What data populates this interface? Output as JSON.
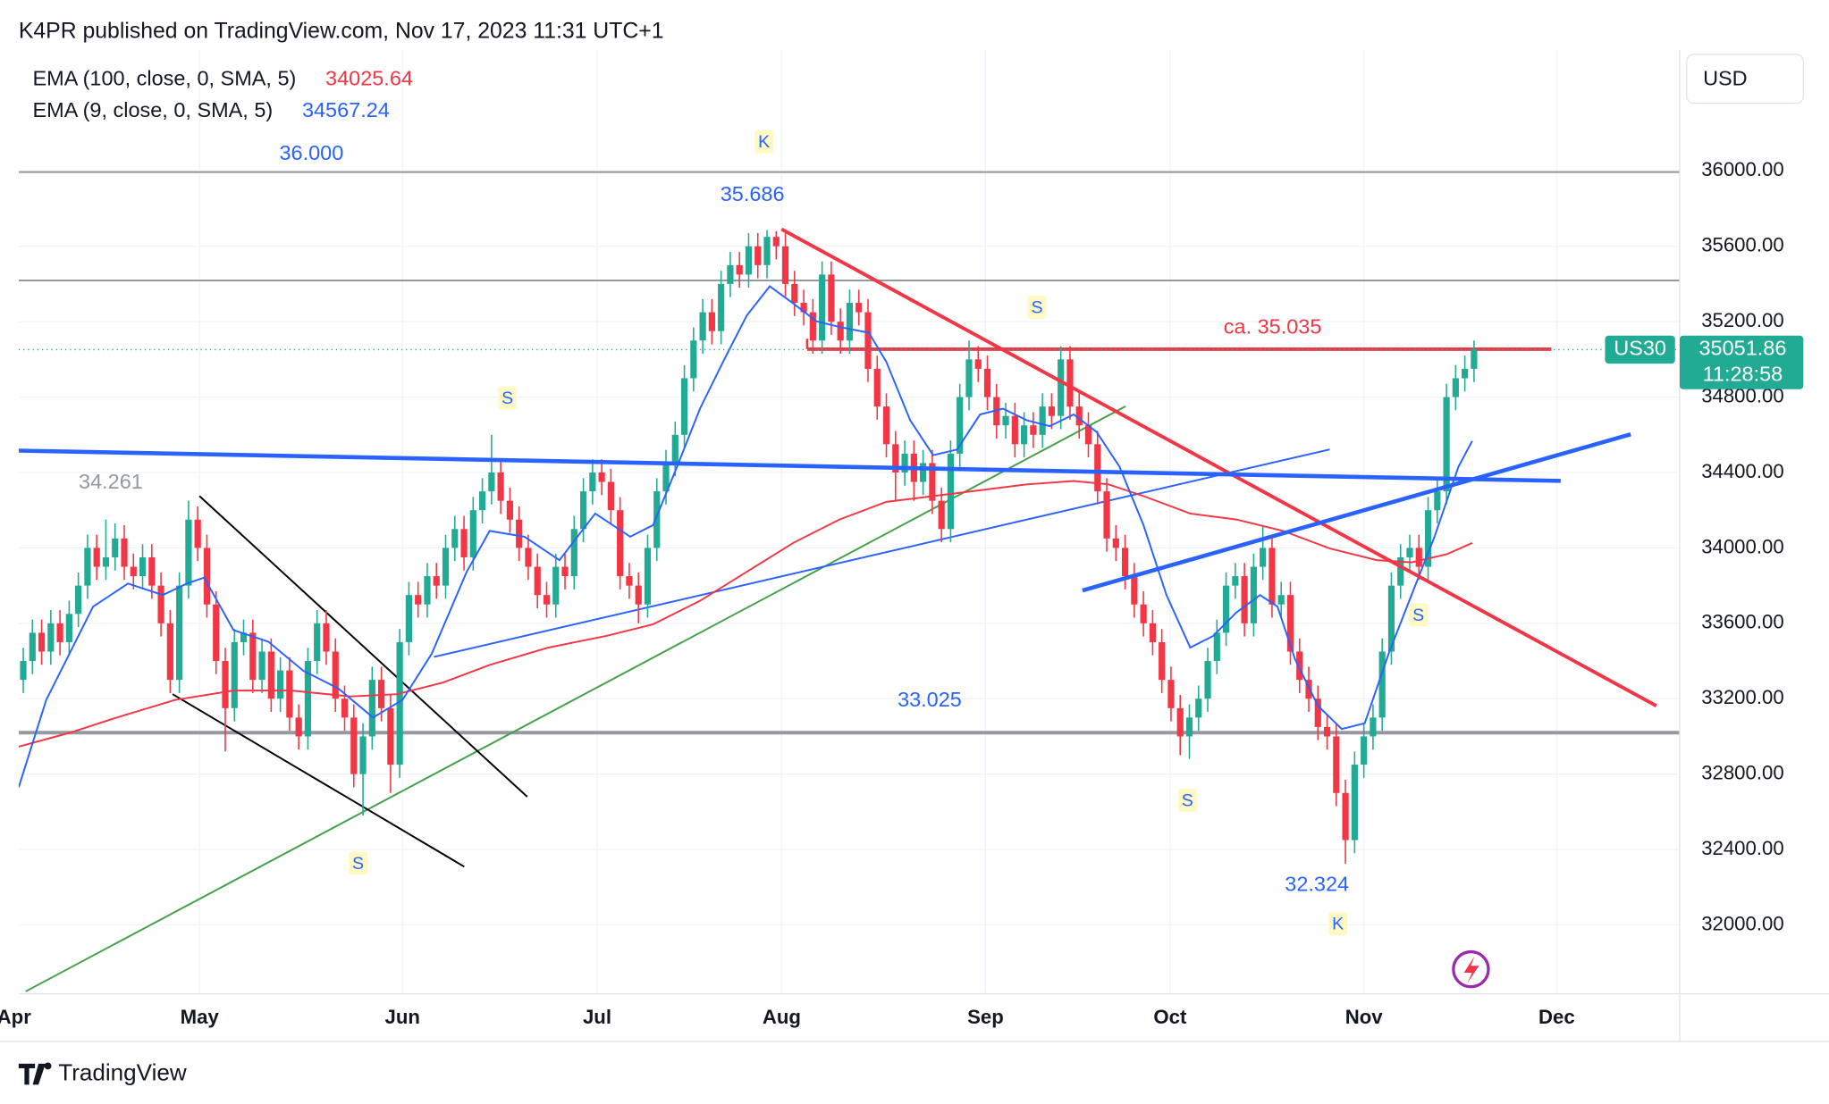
{
  "header": "K4PR published on TradingView.com, Nov 17, 2023 11:31 UTC+1",
  "footer": "TradingView",
  "chart_data": {
    "type": "candlestick",
    "symbol": "US30",
    "currency": "USD",
    "countdown": "11:28:58",
    "up_color": "#22ab94",
    "down_color": "#f23645",
    "grid": true,
    "xlim": [
      -0.5,
      180.4
    ],
    "xticks": [
      {
        "value": -1,
        "label": "Apr"
      },
      {
        "value": 19.2,
        "label": "May"
      },
      {
        "value": 41.3,
        "label": "Jun"
      },
      {
        "value": 62.5,
        "label": "Jul"
      },
      {
        "value": 82.6,
        "label": "Aug"
      },
      {
        "value": 104.8,
        "label": "Sep"
      },
      {
        "value": 124.9,
        "label": "Oct"
      },
      {
        "value": 146,
        "label": "Nov"
      },
      {
        "value": 167,
        "label": "Dec"
      }
    ],
    "ylim": [
      31635,
      36643
    ],
    "yticks": [
      {
        "value": 32000,
        "label": "32000.00"
      },
      {
        "value": 32400,
        "label": "32400.00"
      },
      {
        "value": 32800,
        "label": "32800.00"
      },
      {
        "value": 33200,
        "label": "33200.00"
      },
      {
        "value": 33600,
        "label": "33600.00"
      },
      {
        "value": 34000,
        "label": "34000.00"
      },
      {
        "value": 34400,
        "label": "34400.00"
      },
      {
        "value": 34800,
        "label": "34800.00"
      },
      {
        "value": 35200,
        "label": "35200.00"
      },
      {
        "value": 35600,
        "label": "35600.00"
      },
      {
        "value": 36000,
        "label": "36000.00"
      }
    ],
    "open": [
      33300,
      33400,
      33550,
      33450,
      33600,
      33500,
      33650,
      33800,
      34000,
      33900,
      33950,
      34050,
      33900,
      33850,
      33950,
      33800,
      33600,
      33300,
      33800,
      34150,
      34000,
      33700,
      33400,
      33150,
      33500,
      33550,
      33300,
      33450,
      33200,
      33350,
      33100,
      33000,
      33400,
      33600,
      33450,
      33200,
      33100,
      32800,
      33000,
      33300,
      33150,
      32850,
      33500,
      33750,
      33700,
      33850,
      33800,
      34000,
      34100,
      33950,
      34200,
      34300,
      34400,
      34250,
      34150,
      34000,
      33900,
      33750,
      33700,
      33900,
      33850,
      34100,
      34300,
      34400,
      34350,
      34200,
      33850,
      33800,
      33700,
      34000,
      34300,
      34450,
      34600,
      34900,
      35100,
      35250,
      35150,
      35400,
      35500,
      35450,
      35600,
      35500,
      35650,
      35600,
      35400,
      35300,
      35250,
      35100,
      35450,
      35200,
      35100,
      35300,
      35250,
      34950,
      34750,
      34550,
      34400,
      34500,
      34350,
      34450,
      34250,
      34100,
      34500,
      34800,
      35000,
      34950,
      34800,
      34650,
      34700,
      34550,
      34650,
      34600,
      34750,
      34700,
      35000,
      34750,
      34650,
      34550,
      34300,
      34050,
      34000,
      33850,
      33700,
      33600,
      33500,
      33300,
      33150,
      33000,
      33100,
      33200,
      33400,
      33550,
      33800,
      33850,
      33600,
      33900,
      34000,
      33700,
      33750,
      33450,
      33300,
      33200,
      33050,
      33000,
      32700,
      32450,
      32850,
      33000,
      33100,
      33450,
      33800,
      33950,
      34000,
      33900,
      34200,
      34300,
      34800,
      34900,
      34950
    ],
    "high": [
      33470,
      33620,
      33620,
      33670,
      33670,
      33720,
      33870,
      34070,
      34070,
      34150,
      34130,
      34120,
      33970,
      34020,
      34020,
      33870,
      33670,
      33870,
      34250,
      34220,
      34070,
      33770,
      33470,
      33570,
      33620,
      33620,
      33520,
      33520,
      33420,
      33420,
      33170,
      33470,
      33670,
      33670,
      33520,
      33270,
      33170,
      33070,
      33370,
      33370,
      33220,
      33570,
      33820,
      33820,
      33920,
      33920,
      34070,
      34170,
      34170,
      34270,
      34370,
      34600,
      34470,
      34320,
      34220,
      34070,
      33970,
      33820,
      33970,
      33970,
      34170,
      34370,
      34470,
      34470,
      34420,
      34270,
      33920,
      33870,
      34070,
      34370,
      34520,
      34670,
      34970,
      35170,
      35320,
      35320,
      35470,
      35570,
      35570,
      35670,
      35670,
      35686,
      35680,
      35670,
      35470,
      35370,
      35320,
      35520,
      35520,
      35270,
      35370,
      35370,
      35320,
      35020,
      34820,
      34620,
      34570,
      34570,
      34520,
      34520,
      34320,
      34570,
      34870,
      35100,
      35070,
      35020,
      34870,
      34770,
      34770,
      34720,
      34720,
      34820,
      34820,
      35070,
      35070,
      34820,
      34720,
      34620,
      34370,
      34120,
      34070,
      33920,
      33770,
      33670,
      33570,
      33370,
      33220,
      33170,
      33270,
      33470,
      33620,
      33870,
      33920,
      33920,
      33970,
      34120,
      34070,
      33820,
      33820,
      33520,
      33370,
      33270,
      33120,
      33070,
      32770,
      32920,
      33070,
      33170,
      33520,
      33870,
      34020,
      34070,
      34070,
      34270,
      34370,
      34870,
      34970,
      35020,
      35100
    ],
    "low": [
      33230,
      33330,
      33380,
      33380,
      33430,
      33430,
      33580,
      33730,
      33830,
      33830,
      33880,
      33830,
      33780,
      33780,
      33730,
      33530,
      33230,
      33230,
      33730,
      33930,
      33630,
      33330,
      32920,
      33080,
      33430,
      33230,
      33230,
      33130,
      33130,
      33030,
      32930,
      32930,
      33330,
      33380,
      33130,
      33030,
      32730,
      32580,
      32930,
      33080,
      32700,
      32780,
      33430,
      33630,
      33630,
      33730,
      33730,
      33930,
      33880,
      33880,
      34130,
      34230,
      34180,
      34080,
      33930,
      33830,
      33680,
      33630,
      33630,
      33780,
      33780,
      34030,
      34230,
      34280,
      34130,
      33780,
      33730,
      33600,
      33630,
      33930,
      34230,
      34380,
      34530,
      34830,
      35030,
      35080,
      35080,
      35330,
      35380,
      35380,
      35430,
      35430,
      35530,
      35330,
      35230,
      35180,
      35030,
      35030,
      35130,
      35030,
      35030,
      35180,
      34880,
      34680,
      34480,
      34250,
      34330,
      34250,
      34280,
      34180,
      34030,
      34030,
      34430,
      34730,
      34880,
      34730,
      34580,
      34580,
      34480,
      34480,
      34530,
      34530,
      34630,
      34630,
      34680,
      34580,
      34480,
      34230,
      33980,
      33930,
      33780,
      33630,
      33530,
      33430,
      33230,
      33080,
      32900,
      32880,
      33030,
      33130,
      33330,
      33480,
      33730,
      33530,
      33530,
      33830,
      33630,
      33630,
      33380,
      33230,
      33130,
      32980,
      32930,
      32630,
      32324,
      32380,
      32780,
      32930,
      33030,
      33380,
      33730,
      33880,
      33830,
      33830,
      34130,
      34230,
      34730,
      34830,
      34880
    ],
    "close": [
      33400,
      33550,
      33450,
      33600,
      33500,
      33650,
      33800,
      34000,
      33900,
      33950,
      34050,
      33900,
      33850,
      33950,
      33800,
      33600,
      33300,
      33800,
      34150,
      34000,
      33700,
      33400,
      33150,
      33500,
      33550,
      33300,
      33450,
      33200,
      33350,
      33100,
      33000,
      33400,
      33600,
      33450,
      33200,
      33100,
      32800,
      33000,
      33300,
      33150,
      32850,
      33500,
      33750,
      33700,
      33850,
      33800,
      34000,
      34100,
      33950,
      34200,
      34300,
      34400,
      34250,
      34150,
      34000,
      33900,
      33750,
      33700,
      33900,
      33850,
      34100,
      34300,
      34400,
      34350,
      34200,
      33850,
      33800,
      33700,
      34000,
      34300,
      34450,
      34600,
      34900,
      35100,
      35250,
      35150,
      35400,
      35500,
      35450,
      35600,
      35500,
      35650,
      35600,
      35400,
      35300,
      35250,
      35100,
      35450,
      35200,
      35100,
      35300,
      35250,
      34950,
      34750,
      34550,
      34400,
      34500,
      34350,
      34450,
      34250,
      34100,
      34500,
      34800,
      35000,
      34950,
      34800,
      34650,
      34700,
      34550,
      34650,
      34600,
      34750,
      34700,
      35000,
      34750,
      34650,
      34550,
      34300,
      34050,
      34000,
      33850,
      33700,
      33600,
      33500,
      33300,
      33150,
      33000,
      33100,
      33200,
      33400,
      33550,
      33800,
      33850,
      33600,
      33900,
      34000,
      33700,
      33750,
      33450,
      33300,
      33200,
      33050,
      33000,
      32700,
      32450,
      32850,
      33000,
      33100,
      33450,
      33800,
      33950,
      34000,
      33900,
      34200,
      34300,
      34800,
      34900,
      34950,
      35051.86
    ],
    "lines": [
      {
        "name": "EMA (100, close, 0, SMA, 5)",
        "color": "#f23645",
        "x": [
          -0.5,
          5.1,
          10.2,
          16.5,
          22.9,
          29.2,
          35.6,
          40.7,
          45.7,
          50.8,
          57.2,
          63.5,
          68.6,
          73.7,
          78.8,
          83.9,
          88.9,
          94.0,
          99.1,
          104.2,
          109.3,
          114.4,
          118.2,
          122.0,
          127.1,
          132.1,
          137.2,
          142.3,
          147.4,
          151.2,
          155.0,
          157.8
        ],
        "values": [
          32946,
          33020,
          33100,
          33193,
          33243,
          33243,
          33212,
          33224,
          33286,
          33379,
          33471,
          33533,
          33595,
          33719,
          33873,
          34028,
          34151,
          34244,
          34275,
          34306,
          34337,
          34355,
          34337,
          34275,
          34182,
          34151,
          34090,
          33997,
          33935,
          33923,
          33966,
          34025.64
        ]
      },
      {
        "name": "EMA (9, close, 0, SMA, 5)",
        "color": "#2962ff",
        "x": [
          -0.5,
          2.5,
          7.6,
          11.4,
          15.2,
          17.8,
          19.7,
          22.9,
          26.7,
          30.5,
          34.3,
          38.1,
          41.3,
          44.5,
          48.3,
          50.8,
          54.6,
          58.4,
          62.3,
          66.1,
          68.6,
          71.2,
          73.7,
          76.2,
          78.8,
          81.3,
          83.9,
          86.4,
          88.9,
          92.1,
          94.0,
          96.6,
          99.1,
          101.7,
          104.2,
          106.7,
          109.3,
          111.8,
          114.4,
          116.9,
          119.4,
          122.0,
          124.5,
          127.1,
          129.6,
          132.1,
          134.7,
          136.6,
          138.5,
          141.0,
          143.6,
          146.1,
          148.7,
          151.2,
          153.7,
          156.3,
          157.8
        ],
        "values": [
          32730,
          33193,
          33688,
          33811,
          33750,
          33811,
          33842,
          33564,
          33502,
          33348,
          33255,
          33100,
          33193,
          33440,
          33873,
          34090,
          34059,
          33935,
          34182,
          34059,
          34121,
          34430,
          34739,
          34986,
          35233,
          35388,
          35295,
          35202,
          35172,
          35141,
          34986,
          34677,
          34492,
          34522,
          34708,
          34739,
          34677,
          34646,
          34708,
          34615,
          34430,
          34121,
          33750,
          33471,
          33533,
          33657,
          33750,
          33688,
          33410,
          33162,
          33039,
          33070,
          33440,
          33750,
          34059,
          34430,
          34567.24
        ]
      }
    ],
    "annotations": [
      {
        "text": "36.000",
        "color": "#2962ff"
      },
      {
        "text": "35.686",
        "color": "#2962ff"
      },
      {
        "text": "ca. 35.035",
        "color": "#f23645"
      },
      {
        "text": "34.261",
        "color": "#9598a1"
      },
      {
        "text": "33.025",
        "color": "#2962ff"
      },
      {
        "text": "32.324",
        "color": "#2962ff"
      }
    ],
    "markers": [
      "K",
      "S",
      "S",
      "S",
      "S",
      "S",
      "K"
    ]
  }
}
